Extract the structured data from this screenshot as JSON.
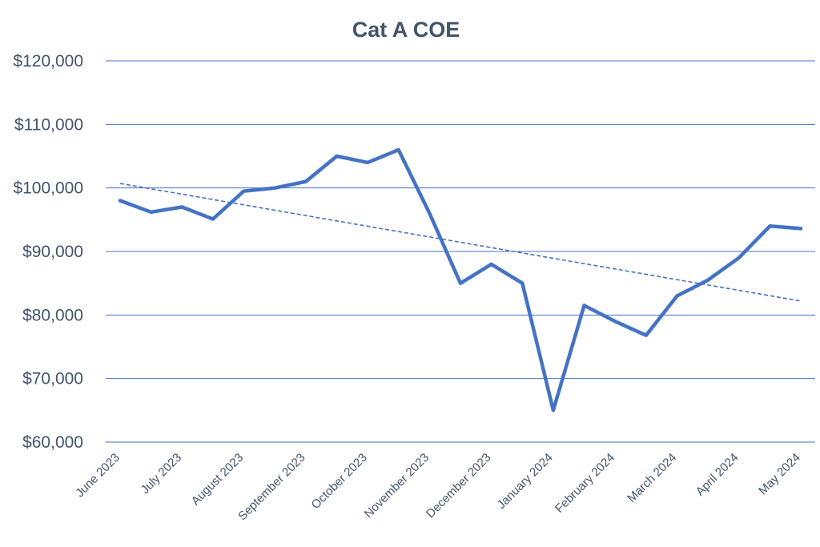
{
  "chart_data": {
    "type": "line",
    "title": "Cat A COE",
    "xlabel": "",
    "ylabel": "",
    "ylim": [
      60000,
      120000
    ],
    "yticks": [
      60000,
      70000,
      80000,
      90000,
      100000,
      110000,
      120000
    ],
    "ytick_labels": [
      "$60,000",
      "$70,000",
      "$80,000",
      "$90,000",
      "$100,000",
      "$110,000",
      "$120,000"
    ],
    "x_tick_labels": [
      "June 2023",
      "July 2023",
      "August 2023",
      "September 2023",
      "October 2023",
      "November 2023",
      "December 2023",
      "January 2024",
      "February 2024",
      "March 2024",
      "April 2024",
      "May 2024"
    ],
    "points_per_month": 2,
    "series": [
      {
        "name": "Cat A COE",
        "color": "#4472c4",
        "values": [
          98000,
          96200,
          97000,
          95100,
          99500,
          100000,
          101000,
          105000,
          104000,
          106000,
          96000,
          85000,
          88000,
          85000,
          65000,
          81500,
          79000,
          76800,
          83000,
          85500,
          89000,
          94000,
          93600
        ]
      }
    ],
    "trendline": {
      "type": "linear",
      "style": "dashed",
      "color": "#4472c4",
      "start_value": 100700,
      "end_value": 82200
    },
    "grid": true,
    "legend": "none"
  }
}
